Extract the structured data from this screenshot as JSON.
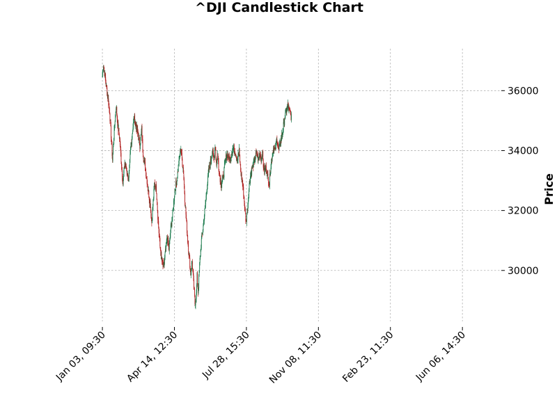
{
  "chart_data": {
    "type": "candlestick",
    "title": "^DJI Candlestick Chart",
    "xlabel": "",
    "ylabel": "Price",
    "ylim": [
      28300,
      37400
    ],
    "x_range": [
      -4,
      1108
    ],
    "yticks": [
      30000,
      32000,
      34000,
      36000
    ],
    "ytick_labels": [
      "30000",
      "32000",
      "34000",
      "36000"
    ],
    "xticks": [
      {
        "index": 0,
        "label": "Jan 03, 09:30"
      },
      {
        "index": 200,
        "label": "Apr 14, 12:30"
      },
      {
        "index": 400,
        "label": "Jul 28, 15:30"
      },
      {
        "index": 600,
        "label": "Nov 08, 11:30"
      },
      {
        "index": 800,
        "label": "Feb 23, 11:30"
      },
      {
        "index": 1000,
        "label": "Jun 06, 14:30"
      }
    ],
    "grid": true,
    "colors": {
      "up": "#1a7a4c",
      "down": "#b22222"
    },
    "close_anchors": [
      [
        0,
        36500
      ],
      [
        3,
        36900
      ],
      [
        6,
        36600
      ],
      [
        10,
        36200
      ],
      [
        16,
        35700
      ],
      [
        20,
        35300
      ],
      [
        25,
        34300
      ],
      [
        28,
        33700
      ],
      [
        33,
        34700
      ],
      [
        38,
        35500
      ],
      [
        43,
        34800
      ],
      [
        48,
        34400
      ],
      [
        52,
        33700
      ],
      [
        57,
        32900
      ],
      [
        62,
        33600
      ],
      [
        68,
        33300
      ],
      [
        73,
        33000
      ],
      [
        78,
        34000
      ],
      [
        83,
        34600
      ],
      [
        88,
        35100
      ],
      [
        94,
        34800
      ],
      [
        99,
        34500
      ],
      [
        104,
        34200
      ],
      [
        109,
        34700
      ],
      [
        113,
        33900
      ],
      [
        118,
        33500
      ],
      [
        123,
        33100
      ],
      [
        128,
        32600
      ],
      [
        133,
        32200
      ],
      [
        137,
        31600
      ],
      [
        141,
        32300
      ],
      [
        145,
        32900
      ],
      [
        150,
        32700
      ],
      [
        155,
        31600
      ],
      [
        160,
        30800
      ],
      [
        165,
        30300
      ],
      [
        170,
        30100
      ],
      [
        175,
        30600
      ],
      [
        180,
        31100
      ],
      [
        185,
        30700
      ],
      [
        190,
        31400
      ],
      [
        196,
        32000
      ],
      [
        201,
        32700
      ],
      [
        207,
        33000
      ],
      [
        213,
        33700
      ],
      [
        218,
        34100
      ],
      [
        221,
        33700
      ],
      [
        225,
        33300
      ],
      [
        229,
        32400
      ],
      [
        233,
        31700
      ],
      [
        237,
        31000
      ],
      [
        241,
        30500
      ],
      [
        245,
        29900
      ],
      [
        249,
        30300
      ],
      [
        253,
        29600
      ],
      [
        257,
        28900
      ],
      [
        261,
        29200
      ],
      [
        263,
        29800
      ],
      [
        266,
        29300
      ],
      [
        270,
        30200
      ],
      [
        275,
        31000
      ],
      [
        280,
        31500
      ],
      [
        285,
        32100
      ],
      [
        290,
        32700
      ],
      [
        295,
        33300
      ],
      [
        300,
        33600
      ],
      [
        305,
        34000
      ],
      [
        310,
        33700
      ],
      [
        313,
        34200
      ],
      [
        317,
        33500
      ],
      [
        320,
        33900
      ],
      [
        325,
        33200
      ],
      [
        330,
        32900
      ],
      [
        335,
        33100
      ],
      [
        340,
        33500
      ],
      [
        345,
        33900
      ],
      [
        350,
        33800
      ],
      [
        355,
        33700
      ],
      [
        360,
        34000
      ],
      [
        365,
        34100
      ],
      [
        370,
        33900
      ],
      [
        375,
        33700
      ],
      [
        380,
        34000
      ],
      [
        384,
        33300
      ],
      [
        388,
        33000
      ],
      [
        392,
        32600
      ],
      [
        396,
        32000
      ],
      [
        399,
        31600
      ],
      [
        402,
        32000
      ],
      [
        405,
        32400
      ],
      [
        409,
        33000
      ],
      [
        413,
        33300
      ],
      [
        418,
        33500
      ],
      [
        423,
        33700
      ],
      [
        428,
        33900
      ],
      [
        433,
        33700
      ],
      [
        438,
        33900
      ],
      [
        442,
        33700
      ],
      [
        444,
        34000
      ],
      [
        447,
        33500
      ],
      [
        450,
        33300
      ],
      [
        455,
        33400
      ],
      [
        460,
        33100
      ],
      [
        464,
        32900
      ],
      [
        466,
        33300
      ],
      [
        470,
        33700
      ],
      [
        475,
        34100
      ],
      [
        480,
        34000
      ],
      [
        485,
        34400
      ],
      [
        490,
        34000
      ],
      [
        495,
        34300
      ],
      [
        500,
        34600
      ],
      [
        505,
        35000
      ],
      [
        510,
        35300
      ],
      [
        515,
        35500
      ],
      [
        520,
        35300
      ],
      [
        525,
        35100
      ]
    ]
  }
}
